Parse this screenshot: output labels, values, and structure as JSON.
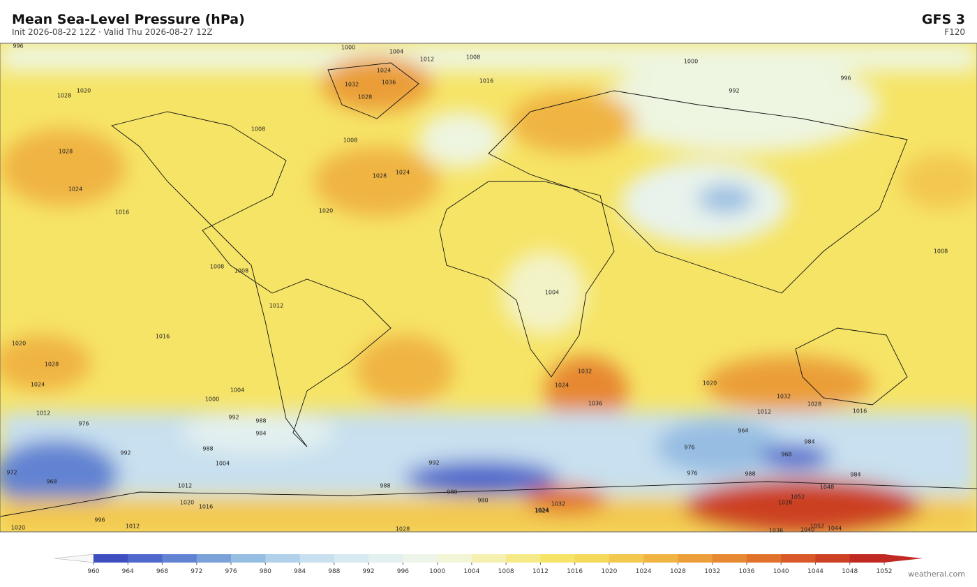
{
  "header": {
    "title": "Mean Sea-Level Pressure  (hPa)",
    "subtitle": "Init 2026-08-22 12Z   ·   Valid Thu 2026-08-27 12Z",
    "model": "GFS  3",
    "forecast_hour": "F120"
  },
  "colorbar": {
    "ticks": [
      960,
      964,
      968,
      972,
      976,
      980,
      984,
      988,
      992,
      996,
      1000,
      1004,
      1008,
      1012,
      1016,
      1020,
      1024,
      1028,
      1032,
      1036,
      1040,
      1044,
      1048,
      1052
    ],
    "colors": [
      "#3f4fc0",
      "#5068cc",
      "#6283d2",
      "#7aa2d8",
      "#96bde2",
      "#b1d0ea",
      "#c8e0ef",
      "#d7e9f1",
      "#e3f0f0",
      "#ecf5e8",
      "#f2f6d6",
      "#f5f0b0",
      "#f6ea86",
      "#f6e466",
      "#f5d95a",
      "#f3c84f",
      "#f0b443",
      "#eb9e39",
      "#e78832",
      "#e1722c",
      "#d85828",
      "#cc4024",
      "#c02a22"
    ],
    "under_color": "#f8f8f8",
    "over_color": "#c02a22"
  },
  "contour_labels": [
    "996",
    "1000",
    "1004",
    "1012",
    "1008",
    "1024",
    "1036",
    "1032",
    "1028",
    "1016",
    "1020",
    "1000",
    "996",
    "992",
    "1028",
    "1028",
    "1024",
    "1016",
    "1008",
    "1008",
    "1028",
    "1024",
    "1020",
    "1008",
    "1008",
    "1004",
    "1012",
    "1016",
    "1020",
    "1028",
    "1024",
    "1012",
    "1004",
    "1000",
    "992",
    "988",
    "984",
    "988",
    "976",
    "968",
    "972",
    "992",
    "1004",
    "1012",
    "1020",
    "1016",
    "1024",
    "1028",
    "1036",
    "1032",
    "1024",
    "1020",
    "1032",
    "1028",
    "1012",
    "1016",
    "992",
    "976",
    "964",
    "988",
    "980",
    "976",
    "968",
    "984",
    "1052",
    "1048",
    "1052",
    "1040",
    "1044",
    "1036",
    "1032",
    "1024",
    "1028",
    "1020",
    "1012",
    "996",
    "980",
    "988",
    "984",
    "1008"
  ],
  "watermark": "weatherai.com"
}
